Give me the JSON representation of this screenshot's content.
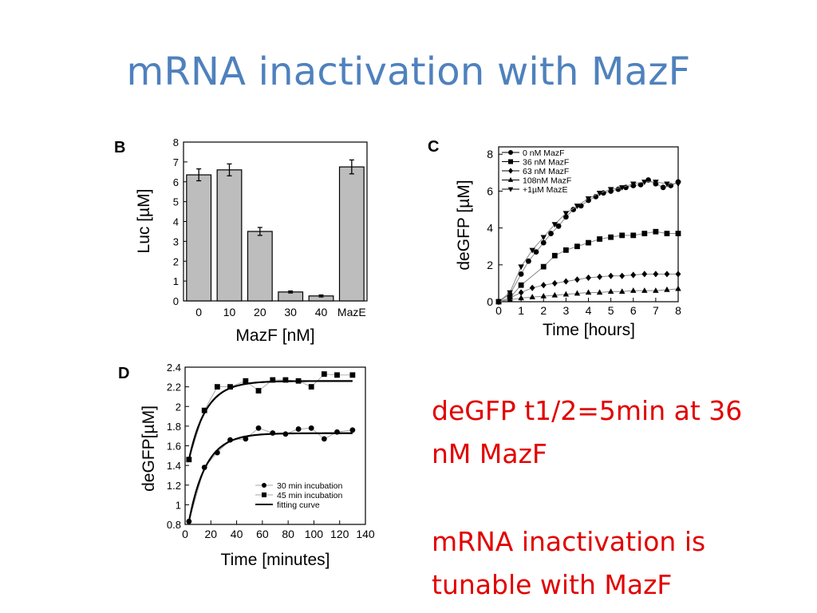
{
  "slide": {
    "title": "mRNA inactivation with MazF",
    "notes": {
      "line1": "deGFP t1/2=5min at 36",
      "line2": "nM MazF",
      "line3": "mRNA inactivation is",
      "line4": "tunable with MazF"
    }
  },
  "chart_data": [
    {
      "panel": "B",
      "type": "bar",
      "categories": [
        "0",
        "10",
        "20",
        "30",
        "40",
        "MazE"
      ],
      "values": [
        6.35,
        6.6,
        3.5,
        0.45,
        0.25,
        6.75
      ],
      "errors": [
        0.3,
        0.3,
        0.2,
        0.05,
        0.05,
        0.35
      ],
      "xlabel": "MazF [nM]",
      "ylabel": "Luc [µM]",
      "ylim": [
        0,
        8
      ],
      "yticks": [
        "0",
        "1",
        "2",
        "3",
        "4",
        "5",
        "6",
        "7",
        "8"
      ],
      "bar_color": "#bdbdbd"
    },
    {
      "panel": "C",
      "type": "line",
      "xlabel": "Time [hours]",
      "ylabel": "deGFP [µM]",
      "xlim": [
        0,
        8
      ],
      "ylim": [
        0,
        8.4
      ],
      "xticks": [
        "0",
        "1",
        "2",
        "3",
        "4",
        "5",
        "6",
        "7",
        "8"
      ],
      "yticks": [
        "0",
        "2",
        "4",
        "6",
        "8"
      ],
      "legend_position": "top-left",
      "series": [
        {
          "name": "0   nM MazF",
          "marker": "circle",
          "x": [
            0,
            0.5,
            1,
            1.33,
            1.67,
            2,
            2.33,
            2.67,
            3,
            3.33,
            3.67,
            4,
            4.33,
            4.67,
            5,
            5.33,
            5.67,
            6,
            6.33,
            6.67,
            7,
            7.33,
            7.67,
            8
          ],
          "y": [
            0,
            0.4,
            1.5,
            2.2,
            2.7,
            3.2,
            3.7,
            4.1,
            4.6,
            5.0,
            5.2,
            5.5,
            5.7,
            5.9,
            6.0,
            6.1,
            6.2,
            6.3,
            6.35,
            6.6,
            6.4,
            6.2,
            6.3,
            6.5
          ]
        },
        {
          "name": "36  nM MazF",
          "marker": "square",
          "x": [
            0,
            0.5,
            1,
            2,
            2.5,
            3,
            3.5,
            4,
            4.5,
            5,
            5.5,
            6,
            6.5,
            7,
            7.5,
            8
          ],
          "y": [
            0,
            0.2,
            0.9,
            1.9,
            2.5,
            2.8,
            3.0,
            3.2,
            3.4,
            3.5,
            3.6,
            3.6,
            3.7,
            3.8,
            3.7,
            3.7
          ]
        },
        {
          "name": "63  nM MazF",
          "marker": "diamond",
          "x": [
            0,
            0.5,
            1,
            1.5,
            2,
            2.5,
            3,
            3.5,
            4,
            4.5,
            5,
            5.5,
            6,
            6.5,
            7,
            7.5,
            8
          ],
          "y": [
            0,
            0.2,
            0.5,
            0.75,
            0.9,
            1.0,
            1.1,
            1.2,
            1.3,
            1.35,
            1.4,
            1.4,
            1.45,
            1.5,
            1.5,
            1.5,
            1.5
          ]
        },
        {
          "name": "108nM MazF",
          "marker": "triangle-up",
          "x": [
            0,
            0.5,
            1,
            1.5,
            2,
            2.5,
            3,
            3.5,
            4,
            4.5,
            5,
            5.5,
            6,
            6.5,
            7,
            7.5,
            8
          ],
          "y": [
            0,
            0.1,
            0.2,
            0.25,
            0.3,
            0.35,
            0.4,
            0.45,
            0.5,
            0.5,
            0.55,
            0.55,
            0.6,
            0.6,
            0.6,
            0.65,
            0.7
          ]
        },
        {
          "name": "+1µM   MazE",
          "marker": "triangle-down",
          "x": [
            0,
            0.5,
            1,
            1.5,
            2,
            2.5,
            3,
            3.5,
            4,
            4.5,
            5,
            5.5,
            6,
            6.5,
            7,
            7.5,
            8
          ],
          "y": [
            0,
            0.5,
            1.9,
            2.8,
            3.5,
            4.2,
            4.8,
            5.2,
            5.6,
            5.9,
            6.1,
            6.2,
            6.4,
            6.5,
            6.5,
            6.4,
            6.4
          ]
        }
      ]
    },
    {
      "panel": "D",
      "type": "scatter",
      "xlabel": "Time [minutes]",
      "ylabel": "deGFP[µM]",
      "xlim": [
        0,
        140
      ],
      "ylim": [
        0.8,
        2.4
      ],
      "xticks": [
        "0",
        "20",
        "40",
        "60",
        "80",
        "100",
        "120",
        "140"
      ],
      "yticks": [
        "0.8",
        "1",
        "1.2",
        "1.4",
        "1.6",
        "1.8",
        "2",
        "2.2",
        "2.4"
      ],
      "legend_position": "bottom-right",
      "series": [
        {
          "name": "30 min incubation",
          "marker": "circle",
          "x": [
            3,
            15,
            25,
            35,
            47,
            57,
            68,
            78,
            88,
            98,
            108,
            118,
            130
          ],
          "y": [
            0.83,
            1.38,
            1.53,
            1.66,
            1.67,
            1.78,
            1.73,
            1.72,
            1.77,
            1.78,
            1.67,
            1.74,
            1.76
          ]
        },
        {
          "name": "45 min incubation",
          "marker": "square",
          "x": [
            3,
            15,
            25,
            35,
            47,
            57,
            68,
            78,
            88,
            98,
            108,
            118,
            130
          ],
          "y": [
            1.46,
            1.96,
            2.2,
            2.2,
            2.26,
            2.16,
            2.27,
            2.27,
            2.26,
            2.2,
            2.33,
            2.32,
            2.32
          ]
        },
        {
          "name": "fitting curve",
          "marker": "line"
        }
      ]
    }
  ]
}
